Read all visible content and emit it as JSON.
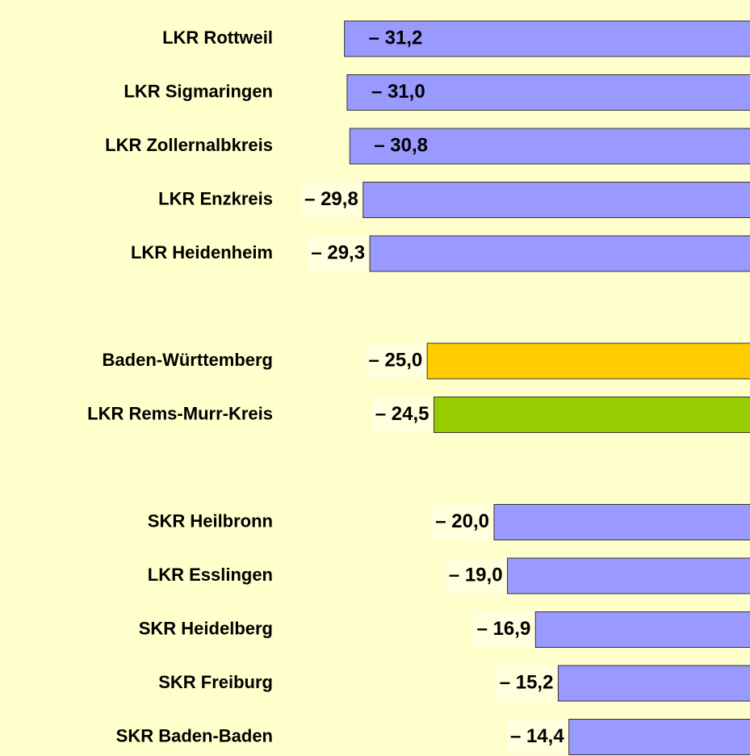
{
  "chart_data": {
    "type": "bar",
    "orientation": "horizontal",
    "categories": [
      "LKR Rottweil",
      "LKR Sigmaringen",
      "LKR Zollernalbkreis",
      "LKR Enzkreis",
      "LKR Heidenheim",
      null,
      "Baden-Württemberg",
      "LKR Rems-Murr-Kreis",
      null,
      "SKR Heilbronn",
      "LKR Esslingen",
      "SKR Heidelberg",
      "SKR Freiburg",
      "SKR Baden-Baden"
    ],
    "values": [
      -31.2,
      -31.0,
      -30.8,
      -29.8,
      -29.3,
      null,
      -25.0,
      -24.5,
      null,
      -20.0,
      -19.0,
      -16.9,
      -15.2,
      -14.4
    ],
    "value_labels": [
      "– 31,2",
      "– 31,0",
      "– 30,8",
      "– 29,8",
      "– 29,3",
      null,
      "– 25,0",
      "– 24,5",
      null,
      "– 20,0",
      "– 19,0",
      "– 16,9",
      "– 15,2",
      "– 14,4"
    ],
    "colors": [
      "#9999ff",
      "#9999ff",
      "#9999ff",
      "#9999ff",
      "#9999ff",
      null,
      "#ffcc00",
      "#99cc00",
      null,
      "#9999ff",
      "#9999ff",
      "#9999ff",
      "#9999ff",
      "#9999ff"
    ]
  }
}
